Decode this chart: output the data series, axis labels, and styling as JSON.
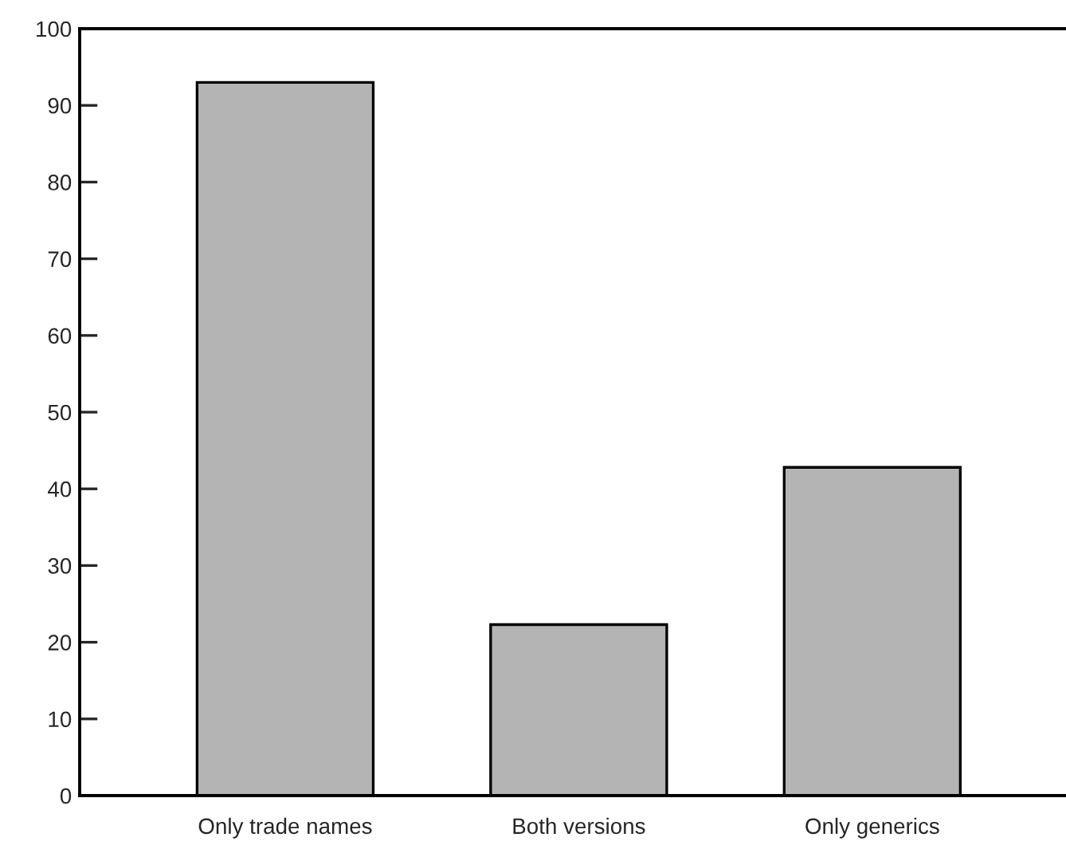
{
  "chart_data": {
    "type": "bar",
    "categories": [
      "Only trade names",
      "Both versions",
      "Only generics"
    ],
    "values": [
      93,
      22.3,
      42.8
    ],
    "color": "#b4b4b4",
    "ylim": [
      0,
      100
    ],
    "yticks": [
      0,
      10,
      20,
      30,
      40,
      50,
      60,
      70,
      80,
      90,
      100
    ],
    "grid": false
  }
}
